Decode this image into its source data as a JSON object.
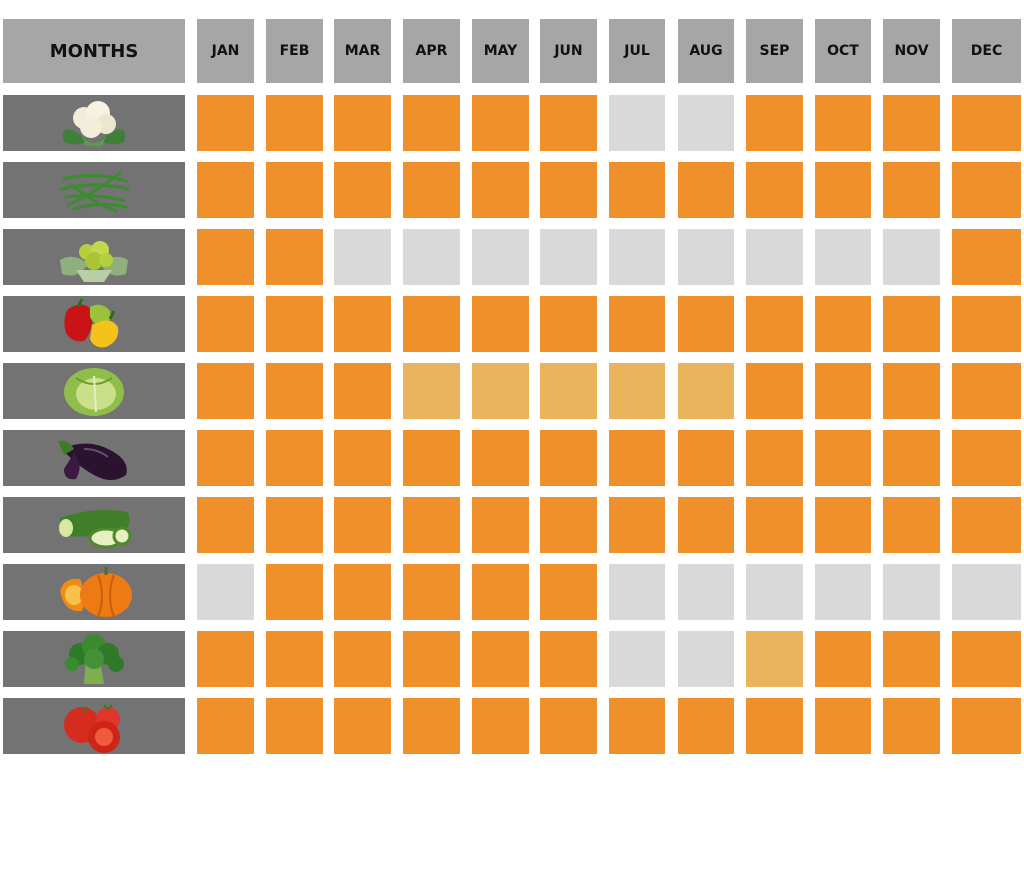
{
  "header": {
    "corner_label": "MONTHS"
  },
  "chart_data": {
    "type": "heatmap",
    "months": [
      "JAN",
      "FEB",
      "MAR",
      "APR",
      "MAY",
      "JUN",
      "JUL",
      "AUG",
      "SEP",
      "OCT",
      "NOV",
      "DEC"
    ],
    "rows": [
      {
        "icon": "cauliflower-icon",
        "levels": [
          2,
          2,
          2,
          2,
          2,
          2,
          0,
          0,
          2,
          2,
          2,
          2
        ]
      },
      {
        "icon": "green-beans-icon",
        "levels": [
          2,
          2,
          2,
          2,
          2,
          2,
          2,
          2,
          2,
          2,
          2,
          2
        ]
      },
      {
        "icon": "romanesco-icon",
        "levels": [
          2,
          2,
          0,
          0,
          0,
          0,
          0,
          0,
          0,
          0,
          0,
          2
        ]
      },
      {
        "icon": "bell-peppers-icon",
        "levels": [
          2,
          2,
          2,
          2,
          2,
          2,
          2,
          2,
          2,
          2,
          2,
          2
        ]
      },
      {
        "icon": "cabbage-icon",
        "levels": [
          2,
          2,
          2,
          1,
          1,
          1,
          1,
          1,
          2,
          2,
          2,
          2
        ]
      },
      {
        "icon": "eggplant-icon",
        "levels": [
          2,
          2,
          2,
          2,
          2,
          2,
          2,
          2,
          2,
          2,
          2,
          2
        ]
      },
      {
        "icon": "zucchini-icon",
        "levels": [
          2,
          2,
          2,
          2,
          2,
          2,
          2,
          2,
          2,
          2,
          2,
          2
        ]
      },
      {
        "icon": "pumpkin-icon",
        "levels": [
          0,
          2,
          2,
          2,
          2,
          2,
          0,
          0,
          0,
          0,
          0,
          0
        ]
      },
      {
        "icon": "broccoli-icon",
        "levels": [
          2,
          2,
          2,
          2,
          2,
          2,
          0,
          0,
          1,
          2,
          2,
          2
        ]
      },
      {
        "icon": "tomatoes-icon",
        "levels": [
          2,
          2,
          2,
          2,
          2,
          2,
          2,
          2,
          2,
          2,
          2,
          2
        ]
      }
    ],
    "level_colors": {
      "0": "#d9d9d9",
      "1": "#e9b45c",
      "2": "#f0902a"
    }
  }
}
